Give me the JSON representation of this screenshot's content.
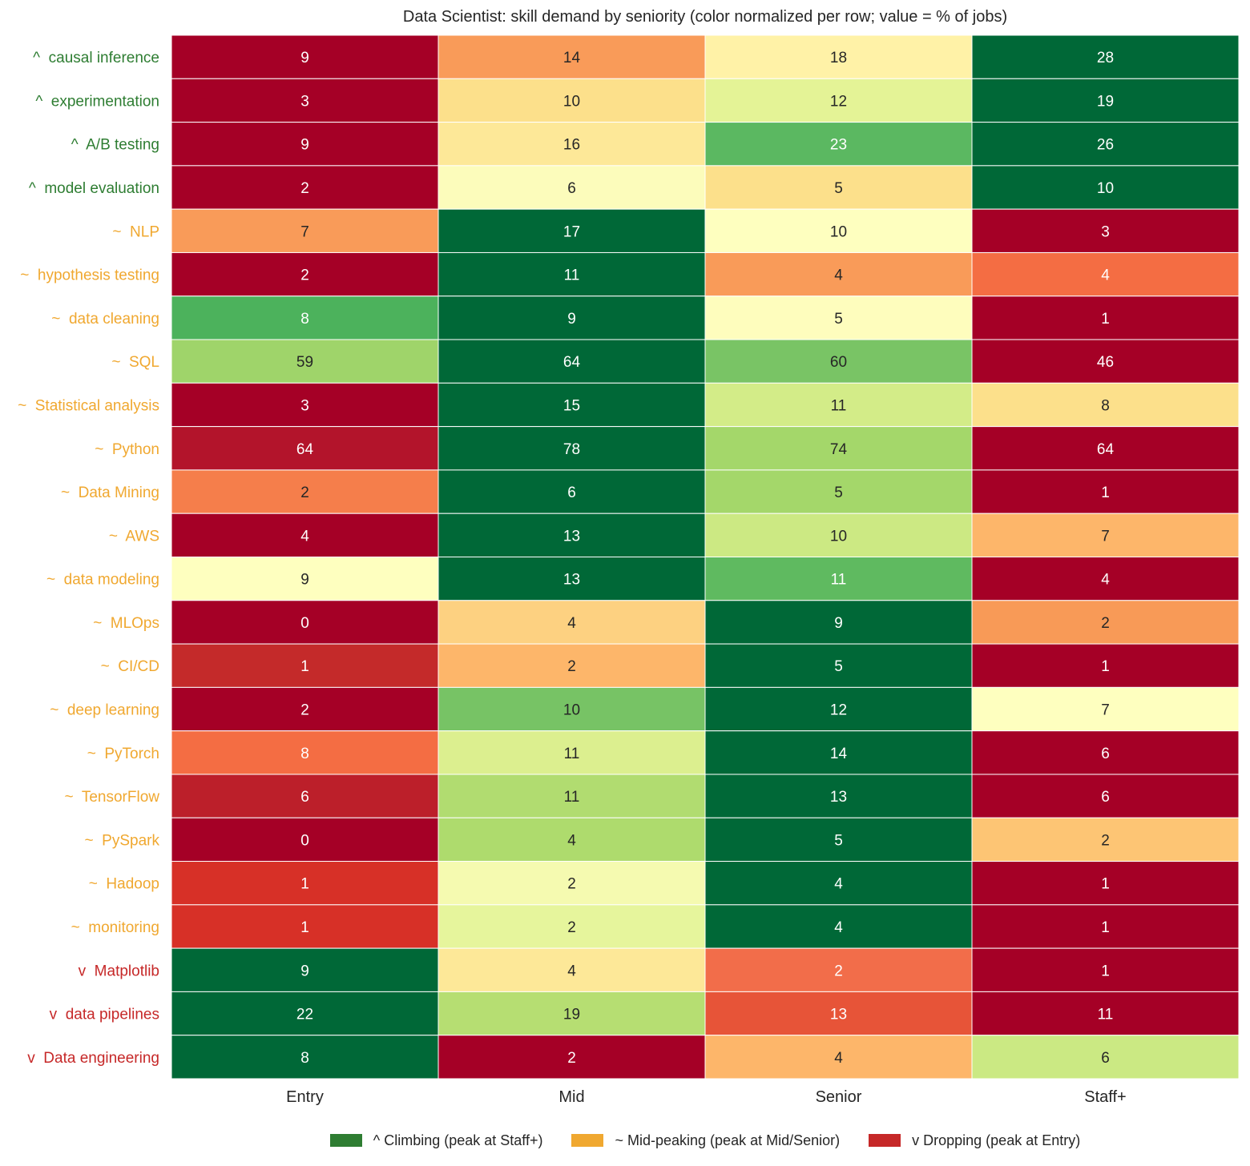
{
  "chart_data": {
    "type": "heatmap",
    "title": "Data Scientist: skill demand by seniority (color normalized per row; value = % of jobs)",
    "columns": [
      "Entry",
      "Mid",
      "Senior",
      "Staff+"
    ],
    "color_scale": "RdYlGn, normalized per row (min = red, max = green)",
    "rows": [
      {
        "label": "^  causal inference",
        "trend": "climbing",
        "values": [
          9,
          14,
          18,
          28
        ]
      },
      {
        "label": "^  experimentation",
        "trend": "climbing",
        "values": [
          3,
          10,
          12,
          19
        ]
      },
      {
        "label": "^  A/B testing",
        "trend": "climbing",
        "values": [
          9,
          16,
          23,
          26
        ]
      },
      {
        "label": "^  model evaluation",
        "trend": "climbing",
        "values": [
          2,
          6,
          5,
          10
        ]
      },
      {
        "label": "~  NLP",
        "trend": "mid",
        "values": [
          7,
          17,
          10,
          3
        ]
      },
      {
        "label": "~  hypothesis testing",
        "trend": "mid",
        "values": [
          2,
          11,
          4,
          4
        ]
      },
      {
        "label": "~  data cleaning",
        "trend": "mid",
        "values": [
          8,
          9,
          5,
          1
        ]
      },
      {
        "label": "~  SQL",
        "trend": "mid",
        "values": [
          59,
          64,
          60,
          46
        ]
      },
      {
        "label": "~  Statistical analysis",
        "trend": "mid",
        "values": [
          3,
          15,
          11,
          8
        ]
      },
      {
        "label": "~  Python",
        "trend": "mid",
        "values": [
          64,
          78,
          74,
          64
        ]
      },
      {
        "label": "~  Data Mining",
        "trend": "mid",
        "values": [
          2,
          6,
          5,
          1
        ]
      },
      {
        "label": "~  AWS",
        "trend": "mid",
        "values": [
          4,
          13,
          10,
          7
        ]
      },
      {
        "label": "~  data modeling",
        "trend": "mid",
        "values": [
          9,
          13,
          11,
          4
        ]
      },
      {
        "label": "~  MLOps",
        "trend": "mid",
        "values": [
          0,
          4,
          9,
          2
        ]
      },
      {
        "label": "~  CI/CD",
        "trend": "mid",
        "values": [
          1,
          2,
          5,
          1
        ]
      },
      {
        "label": "~  deep learning",
        "trend": "mid",
        "values": [
          2,
          10,
          12,
          7
        ]
      },
      {
        "label": "~  PyTorch",
        "trend": "mid",
        "values": [
          8,
          11,
          14,
          6
        ]
      },
      {
        "label": "~  TensorFlow",
        "trend": "mid",
        "values": [
          6,
          11,
          13,
          6
        ]
      },
      {
        "label": "~  PySpark",
        "trend": "mid",
        "values": [
          0,
          4,
          5,
          2
        ]
      },
      {
        "label": "~  Hadoop",
        "trend": "mid",
        "values": [
          1,
          2,
          4,
          1
        ]
      },
      {
        "label": "~  monitoring",
        "trend": "mid",
        "values": [
          1,
          2,
          4,
          1
        ]
      },
      {
        "label": "v  Matplotlib",
        "trend": "dropping",
        "values": [
          9,
          4,
          2,
          1
        ]
      },
      {
        "label": "v  data pipelines",
        "trend": "dropping",
        "values": [
          22,
          19,
          13,
          11
        ]
      },
      {
        "label": "v  Data engineering",
        "trend": "dropping",
        "values": [
          8,
          2,
          4,
          6
        ]
      }
    ],
    "cell_colors": [
      [
        "#a50026",
        "#f99b59",
        "#fff2a7",
        "#006837"
      ],
      [
        "#a50026",
        "#fce08b",
        "#e4f396",
        "#006837"
      ],
      [
        "#a50026",
        "#fde898",
        "#5bb861",
        "#006837"
      ],
      [
        "#a50026",
        "#fcfcbb",
        "#fce08b",
        "#006837"
      ],
      [
        "#f99b59",
        "#006837",
        "#feffbf",
        "#a50026"
      ],
      [
        "#a50026",
        "#006837",
        "#f99b59",
        "#f46d43"
      ],
      [
        "#4cb25c",
        "#006837",
        "#fefdbd",
        "#a50026"
      ],
      [
        "#9fd46a",
        "#006837",
        "#79c465",
        "#a50026"
      ],
      [
        "#a50026",
        "#006837",
        "#d3ec88",
        "#fce08b"
      ],
      [
        "#b3142b",
        "#006837",
        "#a4d76a",
        "#a50026"
      ],
      [
        "#f57e4b",
        "#006837",
        "#a4d76a",
        "#a50026"
      ],
      [
        "#a50026",
        "#006837",
        "#cce983",
        "#fdb66a"
      ],
      [
        "#feffbf",
        "#006837",
        "#5fba60",
        "#a50026"
      ],
      [
        "#a50026",
        "#fdd181",
        "#006837",
        "#f89a57"
      ],
      [
        "#c42a2a",
        "#fdb66a",
        "#006837",
        "#a50026"
      ],
      [
        "#a50026",
        "#77c365",
        "#006837",
        "#feffbf"
      ],
      [
        "#f46d43",
        "#dcef8f",
        "#006837",
        "#a50026"
      ],
      [
        "#bc1f2a",
        "#b1dc70",
        "#006837",
        "#a50026"
      ],
      [
        "#a50026",
        "#aedb6d",
        "#006837",
        "#fdc574"
      ],
      [
        "#d73027",
        "#f5fab0",
        "#006837",
        "#a50026"
      ],
      [
        "#d73027",
        "#e6f59c",
        "#006837",
        "#a50026"
      ],
      [
        "#006837",
        "#fde898",
        "#f26d4a",
        "#a50026"
      ],
      [
        "#006837",
        "#b6de72",
        "#e75438",
        "#a50026"
      ],
      [
        "#006837",
        "#a50026",
        "#fdb66a",
        "#cbe983"
      ]
    ]
  },
  "trend_colors": {
    "climbing": "#2e7d32",
    "mid": "#f0a830",
    "dropping": "#c62828"
  },
  "legend": [
    {
      "key": "climbing",
      "label": "^  Climbing (peak at Staff+)"
    },
    {
      "key": "mid",
      "label": "~  Mid-peaking (peak at Mid/Senior)"
    },
    {
      "key": "dropping",
      "label": "v  Dropping (peak at Entry)"
    }
  ]
}
